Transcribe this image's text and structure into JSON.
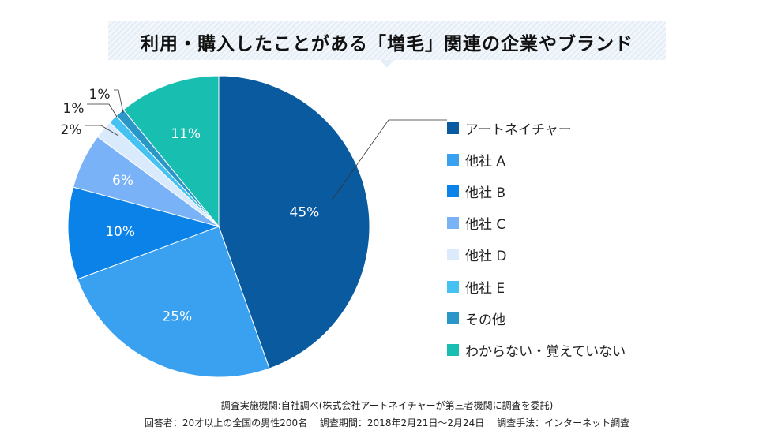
{
  "title": "利用・購入したことがある「増毛」関連の企業やブランド",
  "chart_data": {
    "type": "pie",
    "title": "利用・購入したことがある「増毛」関連の企業やブランド",
    "legend_position": "right",
    "slices": [
      {
        "label": "アートネイチャー",
        "value": 45,
        "display": "45%",
        "color": "#0a5aa0"
      },
      {
        "label": "他社 A",
        "value": 25,
        "display": "25%",
        "color": "#3aa0f0"
      },
      {
        "label": "他社 B",
        "value": 10,
        "display": "10%",
        "color": "#0b82e8"
      },
      {
        "label": "他社 C",
        "value": 6,
        "display": "6%",
        "color": "#7ab2f8"
      },
      {
        "label": "他社 D",
        "value": 2,
        "display": "2%",
        "color": "#d8eafb"
      },
      {
        "label": "他社 E",
        "value": 1,
        "display": "1%",
        "color": "#45c2f2"
      },
      {
        "label": "その他",
        "value": 1,
        "display": "1%",
        "color": "#2a97c8"
      },
      {
        "label": "わからない・覚えていない",
        "value": 11,
        "display": "11%",
        "color": "#18bfb0"
      }
    ]
  },
  "footnotes": {
    "line1": "調査実施機関:自社調べ(株式会社アートネイチャーが第三者機関に調査を委託)",
    "line2": "回答者：20才以上の全国の男性200名　 調査期間：2018年2月21日〜2月24日　 調査手法：インターネット調査"
  }
}
